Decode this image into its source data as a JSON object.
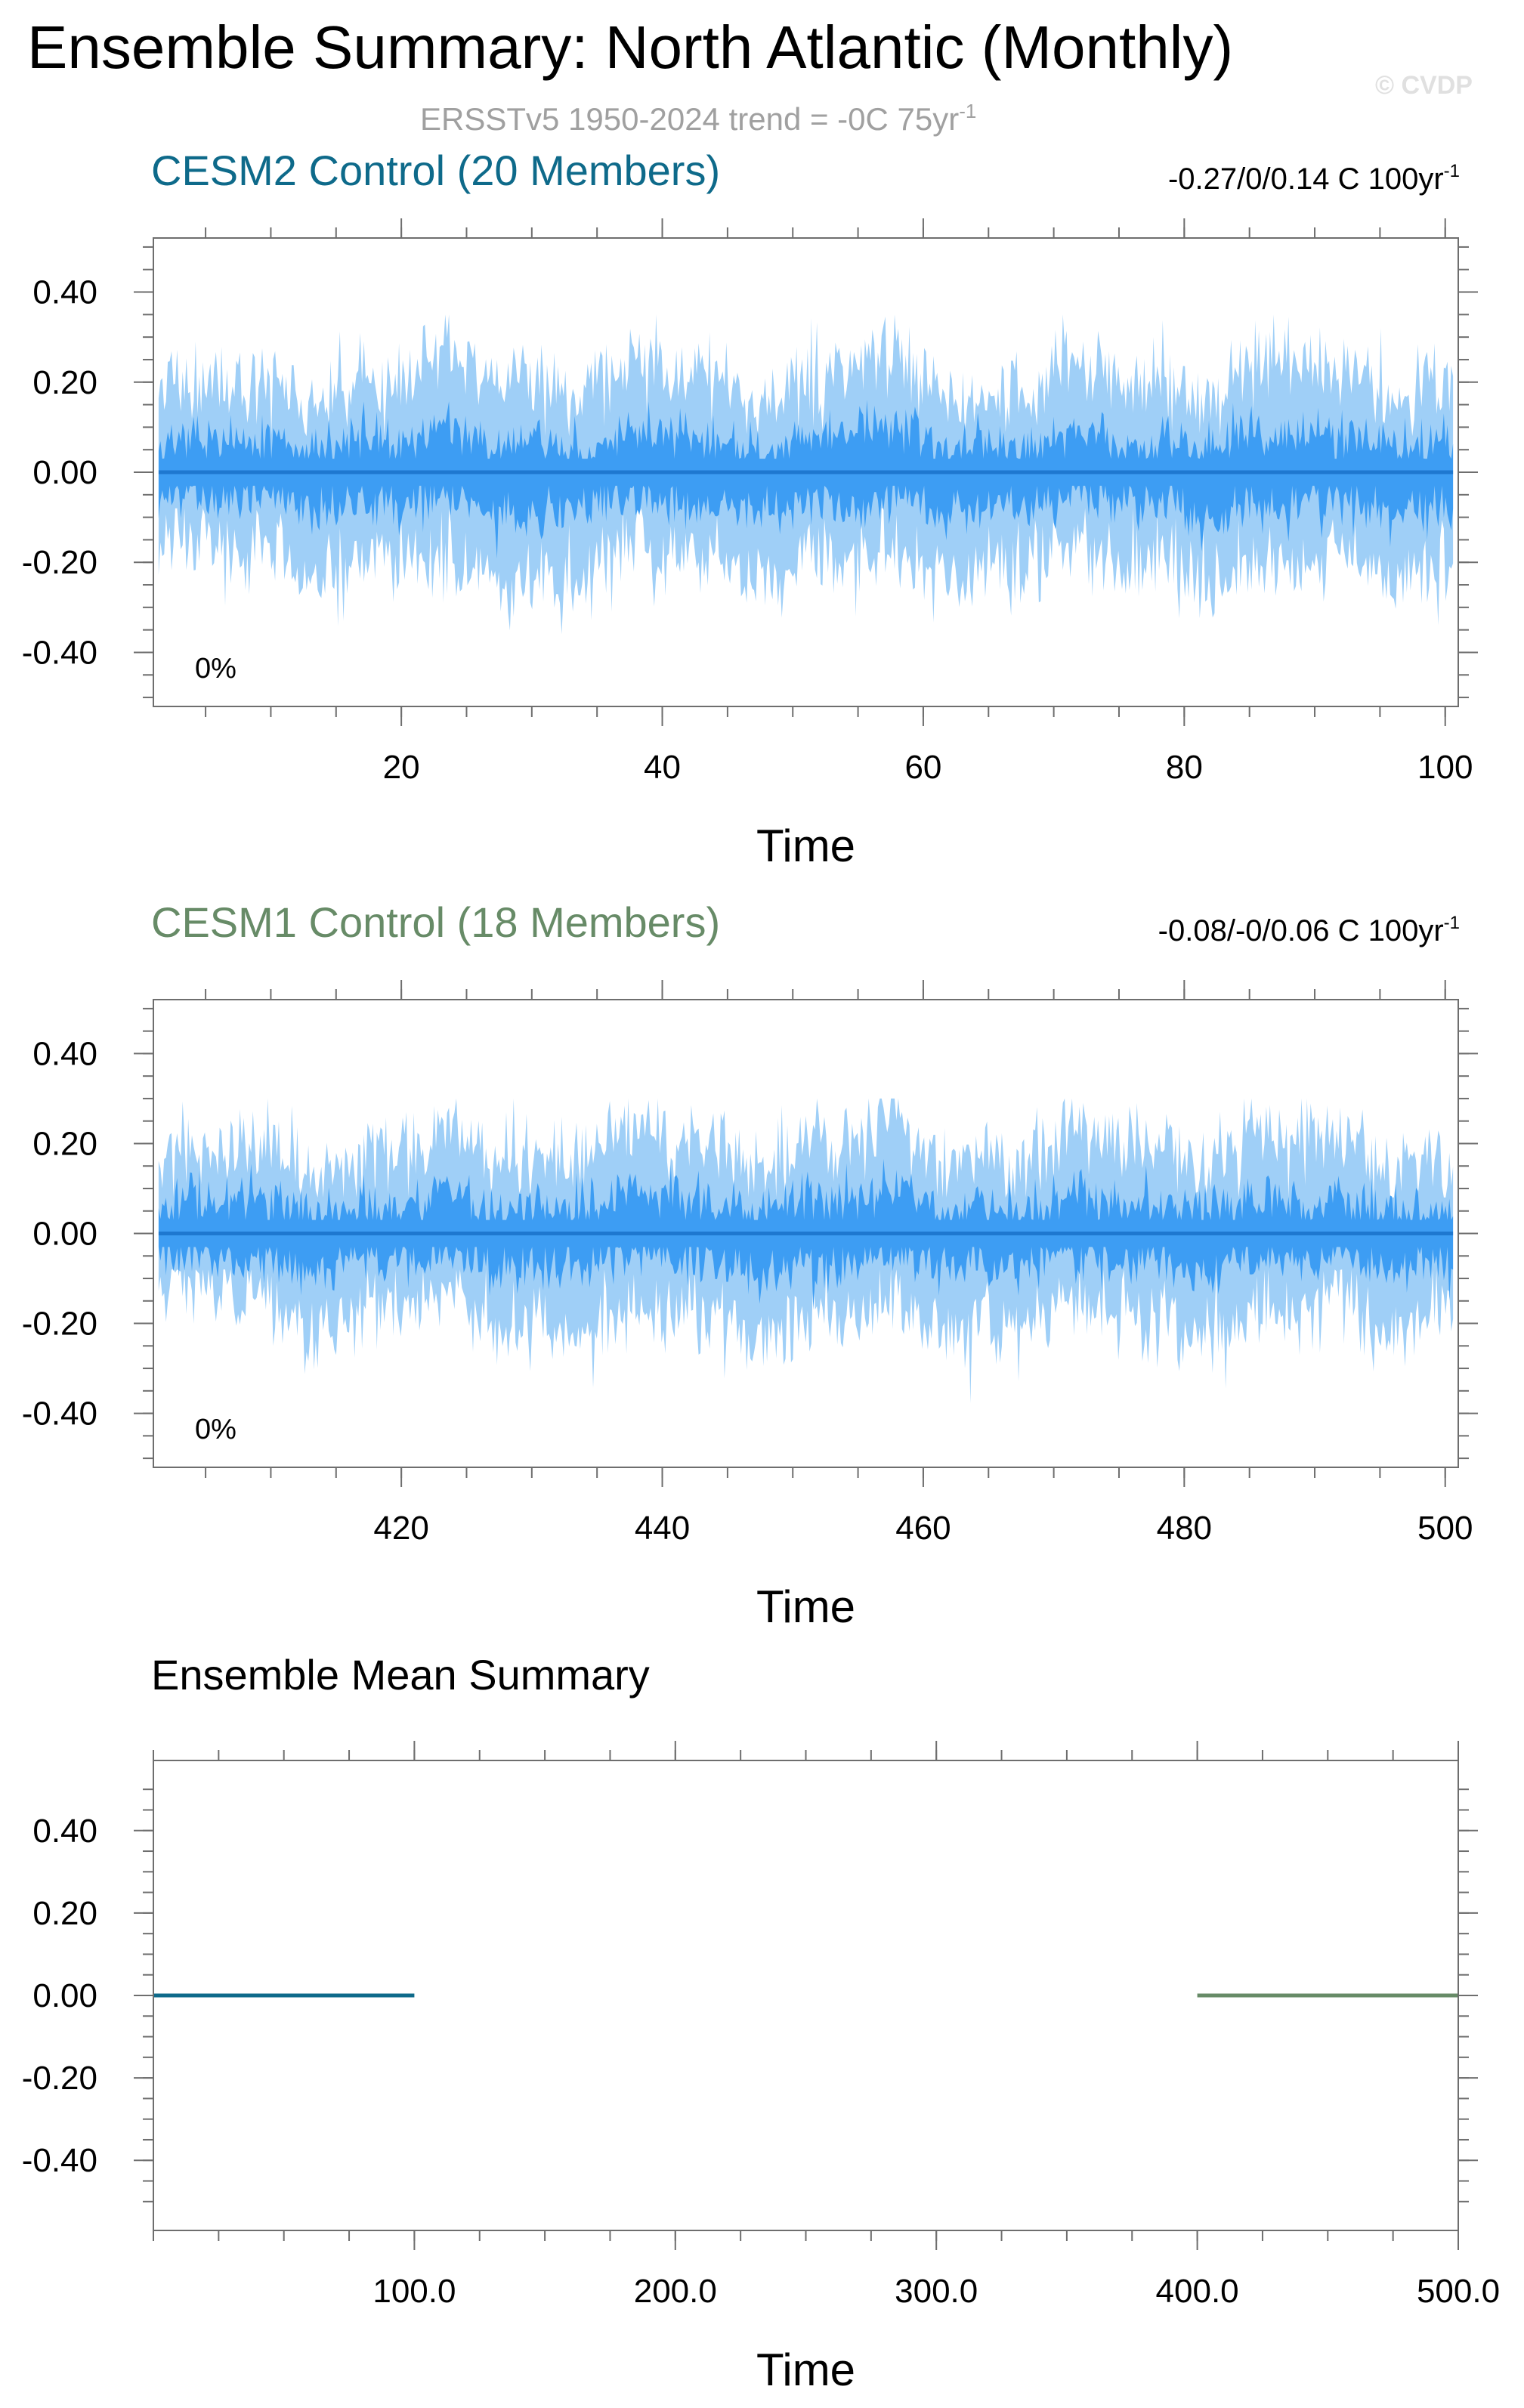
{
  "title": "Ensemble Summary: North Atlantic (Monthly)",
  "watermark": "© CVDP",
  "subtitle": {
    "text": "ERSST​v5 1950-2024 trend = -0C 75yr",
    "sup": "-1"
  },
  "colors": {
    "cesm2": "#0e6a8a",
    "cesm1": "#678b67",
    "band_outer": "#9fcff7",
    "band_inner": "#3d9df3",
    "mean_line": "#1e78d0",
    "subtitle": "#a0a0a0",
    "axis": "#6e6e6e"
  },
  "chart_data": [
    {
      "type": "area",
      "title": "CESM2 Control (20 Members)",
      "title_color": "#0e6a8a",
      "trend": {
        "text": "-0.27/0/0.14 C 100yr",
        "sup": "-1"
      },
      "percent_label": "0%",
      "xlabel": "Time",
      "xlim": [
        1,
        101
      ],
      "ylim": [
        -0.52,
        0.52
      ],
      "xticks": [
        20,
        40,
        60,
        80,
        100
      ],
      "xtick_labels": [
        "20",
        "40",
        "60",
        "80",
        "100"
      ],
      "yticks": [
        0.4,
        0.2,
        0.0,
        -0.2,
        -0.4
      ],
      "ytick_labels": [
        "0.40",
        "0.20",
        "0.00",
        "-0.20",
        "-0.40"
      ],
      "mean": 0.0,
      "envelope_outer": [
        0.18,
        0.2,
        0.22,
        0.21,
        0.2,
        0.21,
        0.19,
        0.2,
        0.22,
        0.2
      ],
      "envelope_inner": [
        0.06,
        0.07,
        0.08,
        0.07,
        0.07,
        0.08,
        0.07,
        0.07,
        0.08,
        0.07
      ],
      "peak_max": 0.35,
      "peak_min": -0.41
    },
    {
      "type": "area",
      "title": "CESM1 Control (18 Members)",
      "title_color": "#678b67",
      "trend": {
        "text": "-0.08/-0/0.06 C 100yr",
        "sup": "-1"
      },
      "percent_label": "0%",
      "xlabel": "Time",
      "xlim": [
        401,
        501
      ],
      "ylim": [
        -0.52,
        0.52
      ],
      "xticks": [
        420,
        440,
        460,
        480,
        500
      ],
      "xtick_labels": [
        "420",
        "440",
        "460",
        "480",
        "500"
      ],
      "yticks": [
        0.4,
        0.2,
        0.0,
        -0.2,
        -0.4
      ],
      "ytick_labels": [
        "0.40",
        "0.20",
        "0.00",
        "-0.20",
        "-0.40"
      ],
      "mean": 0.0,
      "envelope_outer": [
        0.16,
        0.17,
        0.19,
        0.2,
        0.19,
        0.2,
        0.18,
        0.2,
        0.19,
        0.18
      ],
      "envelope_inner": [
        0.06,
        0.06,
        0.07,
        0.07,
        0.07,
        0.07,
        0.06,
        0.07,
        0.07,
        0.06
      ],
      "peak_max": 0.3,
      "peak_min": -0.45
    },
    {
      "type": "line",
      "title": "Ensemble Mean Summary",
      "xlabel": "Time",
      "xlim": [
        0,
        500
      ],
      "ylim": [
        -0.57,
        0.57
      ],
      "xticks": [
        100,
        200,
        300,
        400,
        500
      ],
      "xtick_labels": [
        "100.0",
        "200.0",
        "300.0",
        "400.0",
        "500.0"
      ],
      "yticks": [
        0.4,
        0.2,
        0.0,
        -0.2,
        -0.4
      ],
      "ytick_labels": [
        "0.40",
        "0.20",
        "0.00",
        "-0.20",
        "-0.40"
      ],
      "series": [
        {
          "x": [
            0,
            100
          ],
          "y": [
            0,
            0
          ],
          "color": "#0e6a8a"
        },
        {
          "x": [
            400,
            500
          ],
          "y": [
            0,
            0
          ],
          "color": "#678b67"
        }
      ]
    }
  ]
}
